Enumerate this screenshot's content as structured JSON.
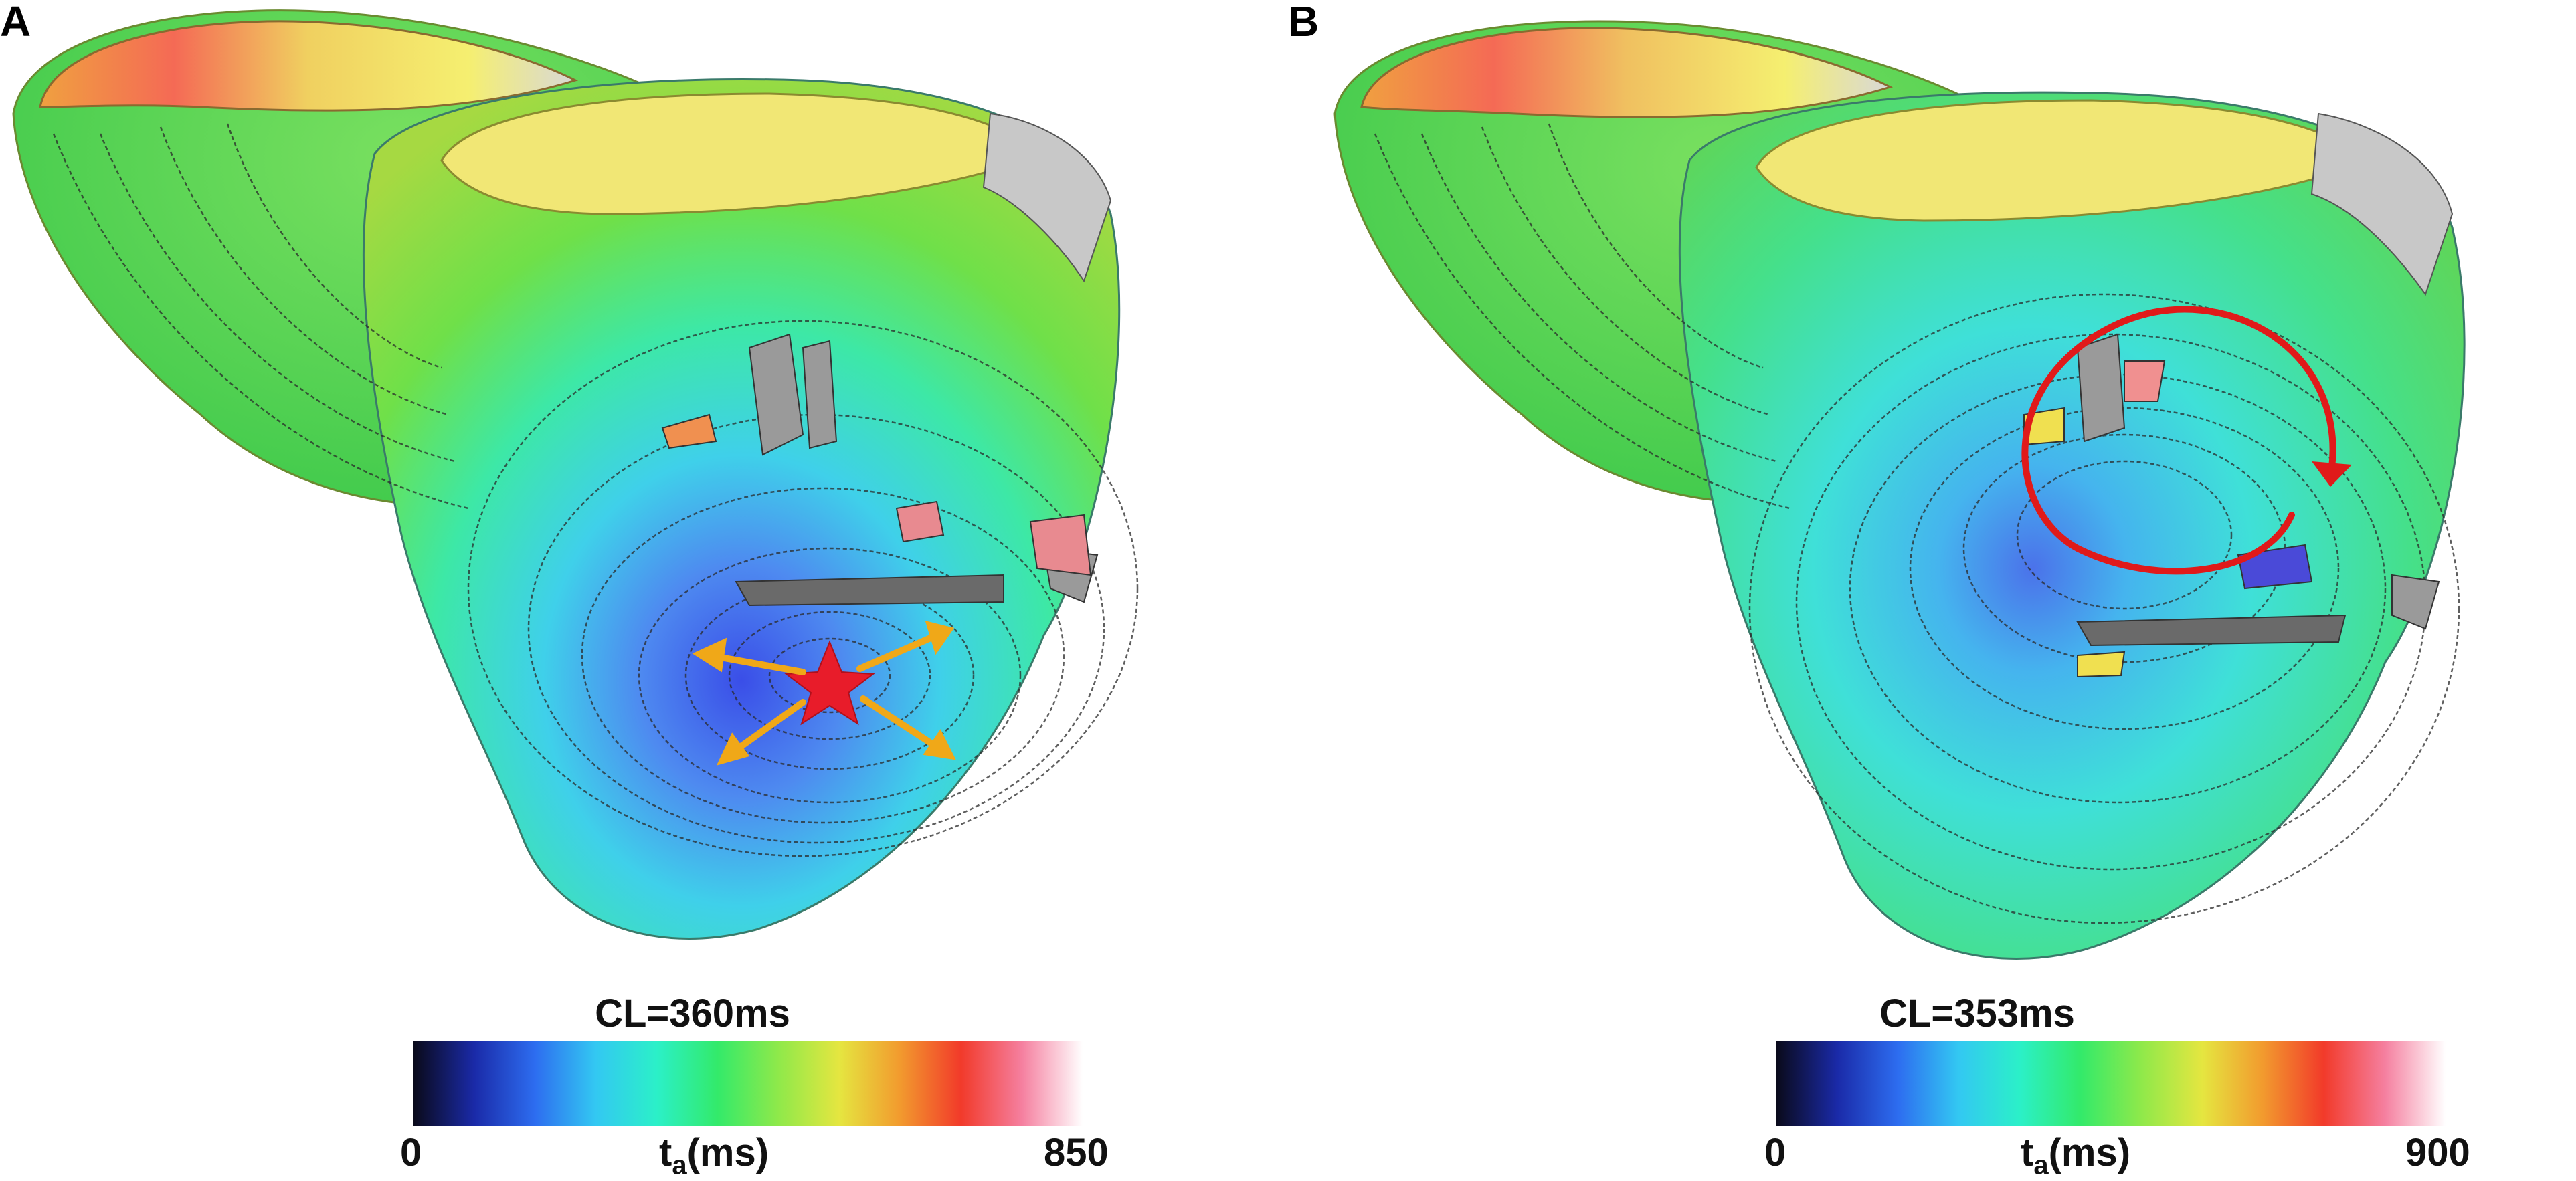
{
  "panels": [
    {
      "letter": "A",
      "cycle_length": "CL=360ms",
      "colorbar": {
        "min_label": "0",
        "max_label": "850",
        "unit_main": "t",
        "unit_sub": "a",
        "unit_suffix": "(ms)",
        "colors": [
          "#0a0a1a",
          "#1a2aa8",
          "#2d6df0",
          "#33c8f2",
          "#2bf0c8",
          "#33ea6a",
          "#8fe94a",
          "#e5e640",
          "#f29a2e",
          "#f23a2a",
          "#f57f9f",
          "#ffffff"
        ]
      },
      "annotation": "red star pacing site with four yellow arrows"
    },
    {
      "letter": "B",
      "cycle_length": "CL=353ms",
      "colorbar": {
        "min_label": "0",
        "max_label": "900",
        "unit_main": "t",
        "unit_sub": "a",
        "unit_suffix": "(ms)",
        "colors": [
          "#0a0a1a",
          "#1a2aa8",
          "#2d6df0",
          "#33c8f2",
          "#2bf0c8",
          "#33ea6a",
          "#8fe94a",
          "#e5e640",
          "#f29a2e",
          "#f23a2a",
          "#f57f9f",
          "#ffffff"
        ]
      },
      "annotation": "red circular reentry arrow"
    }
  ]
}
